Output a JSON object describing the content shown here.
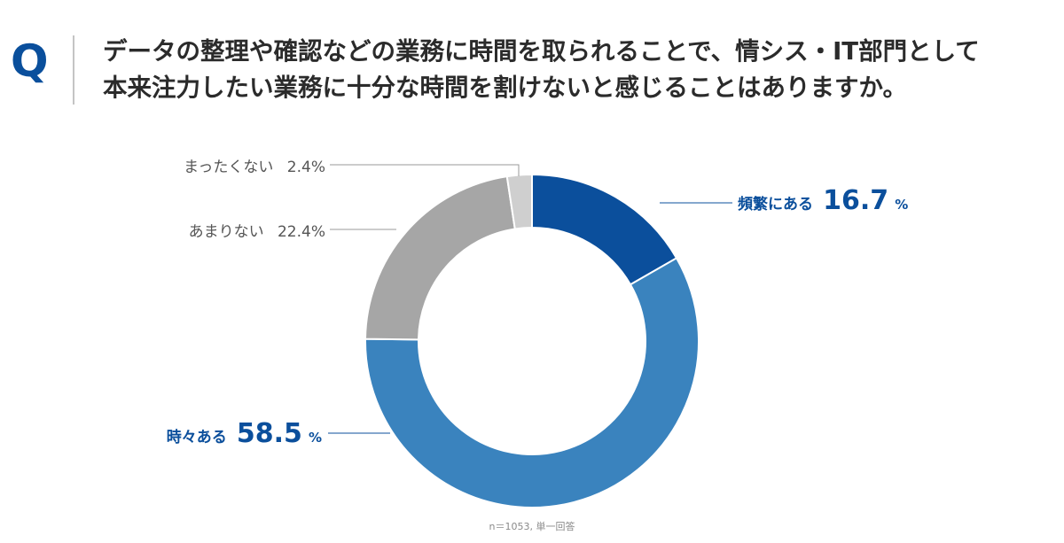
{
  "header": {
    "q_mark": "Q",
    "question_line1": "データの整理や確認などの業務に時間を取られることで、情シス・IT部門として",
    "question_line2": "本来注力したい業務に十分な時間を割けないと感じることはありますか。"
  },
  "chart_data": {
    "type": "pie",
    "donut": true,
    "unit": "%",
    "note": "n＝1053, 単一回答",
    "slices": [
      {
        "label": "頻繁にある",
        "value": 16.7,
        "value_text": "16.7",
        "pct_text": "%",
        "color": "#0b4f9c"
      },
      {
        "label": "時々ある",
        "value": 58.5,
        "value_text": "58.5",
        "pct_text": "%",
        "color": "#3a83be"
      },
      {
        "label": "あまりない",
        "value": 22.4,
        "value_text": "22.4%",
        "color": "#a6a6a6"
      },
      {
        "label": "まったくない",
        "value": 2.4,
        "value_text": "2.4%",
        "color": "#cfcfcf"
      }
    ]
  }
}
